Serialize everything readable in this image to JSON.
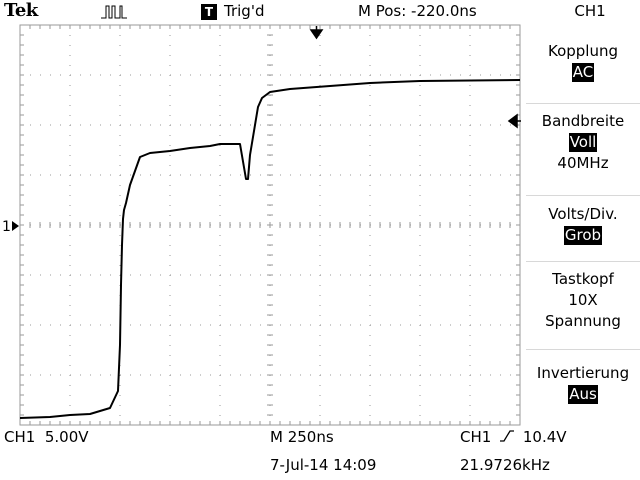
{
  "header": {
    "brand": "Tek",
    "run_icon": "pulse-waveform-icon",
    "trigger_badge": "T",
    "trigger_status": "Trig'd",
    "main_position": "M Pos: -220.0ns",
    "channel": "CH1"
  },
  "markers": {
    "channel_ground": "1",
    "trigger_position_icon": "down-arrow-icon",
    "trigger_level_icon": "left-arrow-icon"
  },
  "menu": {
    "coupling_label": "Kopplung",
    "coupling_value": "AC",
    "bandwidth_label": "Bandbreite",
    "bandwidth_value": "Voll",
    "bandwidth_limit": "40MHz",
    "volts_div_label": "Volts/Div.",
    "volts_div_value": "Grob",
    "probe_label": "Tastkopf",
    "probe_attenuation": "10X",
    "probe_mode": "Spannung",
    "invert_label": "Invertierung",
    "invert_value": "Aus"
  },
  "footer": {
    "channel_scale": "CH1  5.00V",
    "timebase": "M 250ns",
    "date_time": "7-Jul-14 14:09",
    "trigger_channel": "CH1",
    "trigger_slope_icon": "rising-edge-icon",
    "trigger_level": "10.4V",
    "frequency": "21.9726kHz"
  },
  "colors": {
    "background": "#ffffff",
    "trace": "#000000",
    "grid": "#9a9a9a"
  },
  "chart_data": {
    "type": "line",
    "title": "",
    "xlabel": "",
    "ylabel": "",
    "x_unit": "ns",
    "y_unit": "V",
    "xlim": [
      -1250,
      1250
    ],
    "ylim": [
      -20,
      20
    ],
    "grid": true,
    "series": [
      {
        "x": [
          -1250,
          -1100,
          -1000,
          -900,
          -800,
          -760,
          -750,
          -745,
          -740,
          -735,
          -730,
          -720,
          -700,
          -650,
          -600,
          -500,
          -400,
          -300,
          -250,
          -150,
          -120,
          -110,
          -100,
          -80,
          -60,
          -40,
          0,
          100,
          300,
          500,
          750,
          1250
        ],
        "y": [
          -19.3,
          -19.2,
          -19.0,
          -18.9,
          -18.3,
          -16.6,
          -12.0,
          -6.0,
          -2.0,
          0.6,
          1.5,
          2.2,
          4.0,
          6.8,
          7.2,
          7.4,
          7.7,
          7.9,
          8.1,
          8.1,
          4.6,
          4.6,
          7.0,
          9.4,
          11.8,
          12.7,
          13.3,
          13.6,
          13.9,
          14.2,
          14.4,
          14.5
        ]
      }
    ]
  }
}
